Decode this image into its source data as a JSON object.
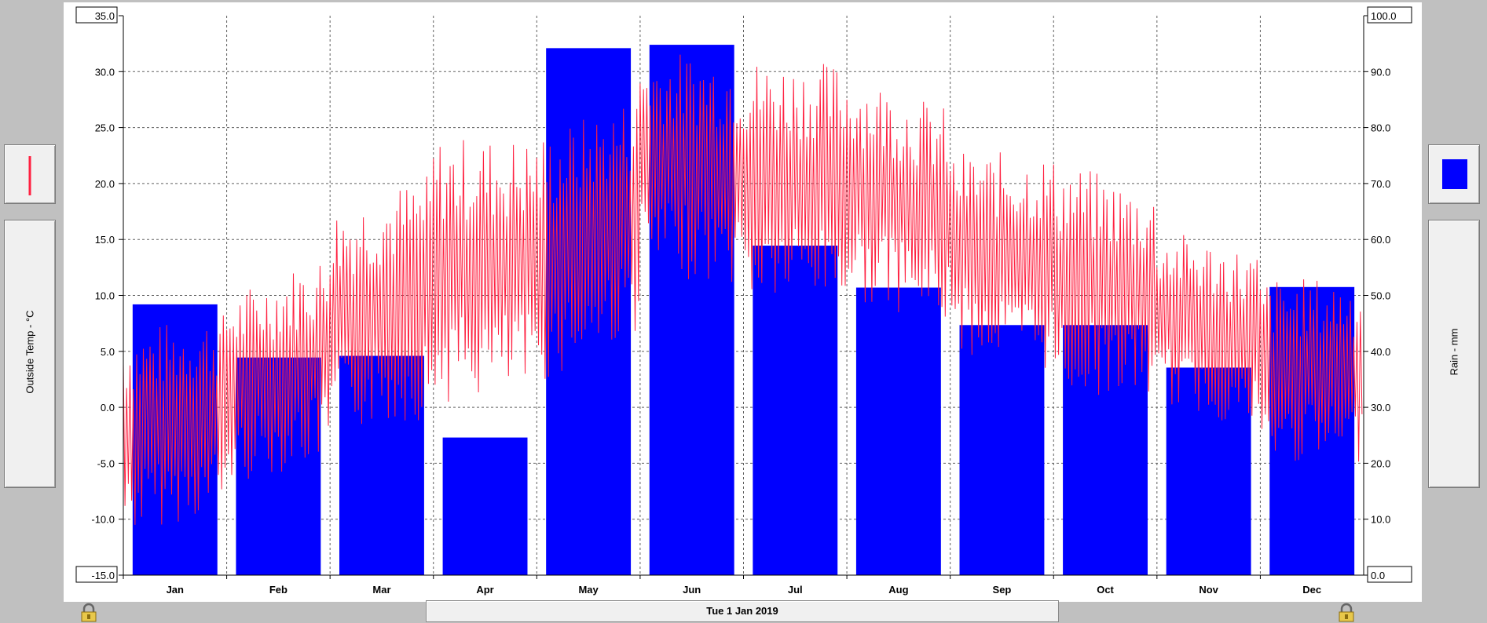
{
  "axes": {
    "left_label": "Outside Temp - °C",
    "right_label": "Rain - mm"
  },
  "date_bar": {
    "label": "Tue 1 Jan 2019"
  },
  "colors": {
    "temp_line": "#ff2040",
    "rain_bar": "#0000ff"
  },
  "legend": {
    "temp_icon": "red-line-icon",
    "rain_icon": "blue-square-icon"
  },
  "chart_data": {
    "type": "bar",
    "categories": [
      "Jan",
      "Feb",
      "Mar",
      "Apr",
      "May",
      "Jun",
      "Jul",
      "Aug",
      "Sep",
      "Oct",
      "Nov",
      "Dec"
    ],
    "series": [
      {
        "type": "bar",
        "axis": "right",
        "values": [
          48.4,
          38.9,
          39.2,
          24.6,
          94.2,
          94.8,
          58.9,
          51.4,
          44.7,
          44.7,
          37.1,
          51.5
        ]
      },
      {
        "type": "line",
        "axis": "left",
        "monthly_low": [
          -12.5,
          -8.0,
          -3.5,
          -1.0,
          0.5,
          11.0,
          8.0,
          8.5,
          4.0,
          0.0,
          -0.5,
          -6.0
        ],
        "monthly_high": [
          8.0,
          11.0,
          19.0,
          25.5,
          25.5,
          33.0,
          32.5,
          31.5,
          24.0,
          23.5,
          17.0,
          12.5
        ]
      }
    ],
    "y_left": {
      "min": -15.0,
      "max": 35.0,
      "ticks": [
        "35.0",
        "30.0",
        "25.0",
        "20.0",
        "15.0",
        "10.0",
        "5.0",
        "0.0",
        "-5.0",
        "-10.0",
        "-15.0"
      ]
    },
    "y_right": {
      "min": 0.0,
      "max": 100.0,
      "ticks": [
        "100.0",
        "90.0",
        "80.0",
        "70.0",
        "60.0",
        "50.0",
        "40.0",
        "30.0",
        "20.0",
        "10.0",
        "0.0"
      ]
    },
    "grid": true
  }
}
